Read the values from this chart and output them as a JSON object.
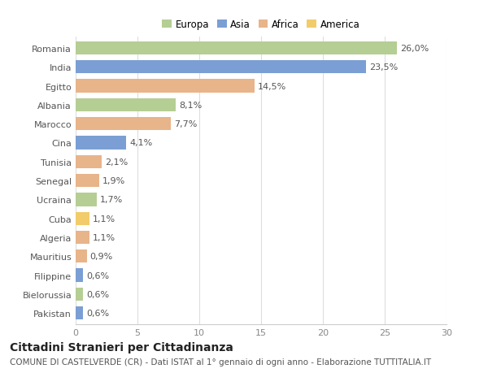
{
  "countries": [
    "Romania",
    "India",
    "Egitto",
    "Albania",
    "Marocco",
    "Cina",
    "Tunisia",
    "Senegal",
    "Ucraina",
    "Cuba",
    "Algeria",
    "Mauritius",
    "Filippine",
    "Bielorussia",
    "Pakistan"
  ],
  "values": [
    26.0,
    23.5,
    14.5,
    8.1,
    7.7,
    4.1,
    2.1,
    1.9,
    1.7,
    1.1,
    1.1,
    0.9,
    0.6,
    0.6,
    0.6
  ],
  "labels": [
    "26,0%",
    "23,5%",
    "14,5%",
    "8,1%",
    "7,7%",
    "4,1%",
    "2,1%",
    "1,9%",
    "1,7%",
    "1,1%",
    "1,1%",
    "0,9%",
    "0,6%",
    "0,6%",
    "0,6%"
  ],
  "colors": [
    "#b5ce94",
    "#7b9fd4",
    "#e8b48a",
    "#b5ce94",
    "#e8b48a",
    "#7b9fd4",
    "#e8b48a",
    "#e8b48a",
    "#b5ce94",
    "#f2cc6a",
    "#e8b48a",
    "#e8b48a",
    "#7b9fd4",
    "#b5ce94",
    "#7b9fd4"
  ],
  "legend_labels": [
    "Europa",
    "Asia",
    "Africa",
    "America"
  ],
  "legend_colors": [
    "#b5ce94",
    "#7b9fd4",
    "#e8b48a",
    "#f2cc6a"
  ],
  "xlim": [
    0,
    30
  ],
  "xticks": [
    0,
    5,
    10,
    15,
    20,
    25,
    30
  ],
  "title": "Cittadini Stranieri per Cittadinanza",
  "subtitle": "COMUNE DI CASTELVERDE (CR) - Dati ISTAT al 1° gennaio di ogni anno - Elaborazione TUTTITALIA.IT",
  "background_color": "#ffffff",
  "bar_height": 0.7,
  "label_fontsize": 8,
  "tick_fontsize": 8,
  "title_fontsize": 10,
  "subtitle_fontsize": 7.5
}
